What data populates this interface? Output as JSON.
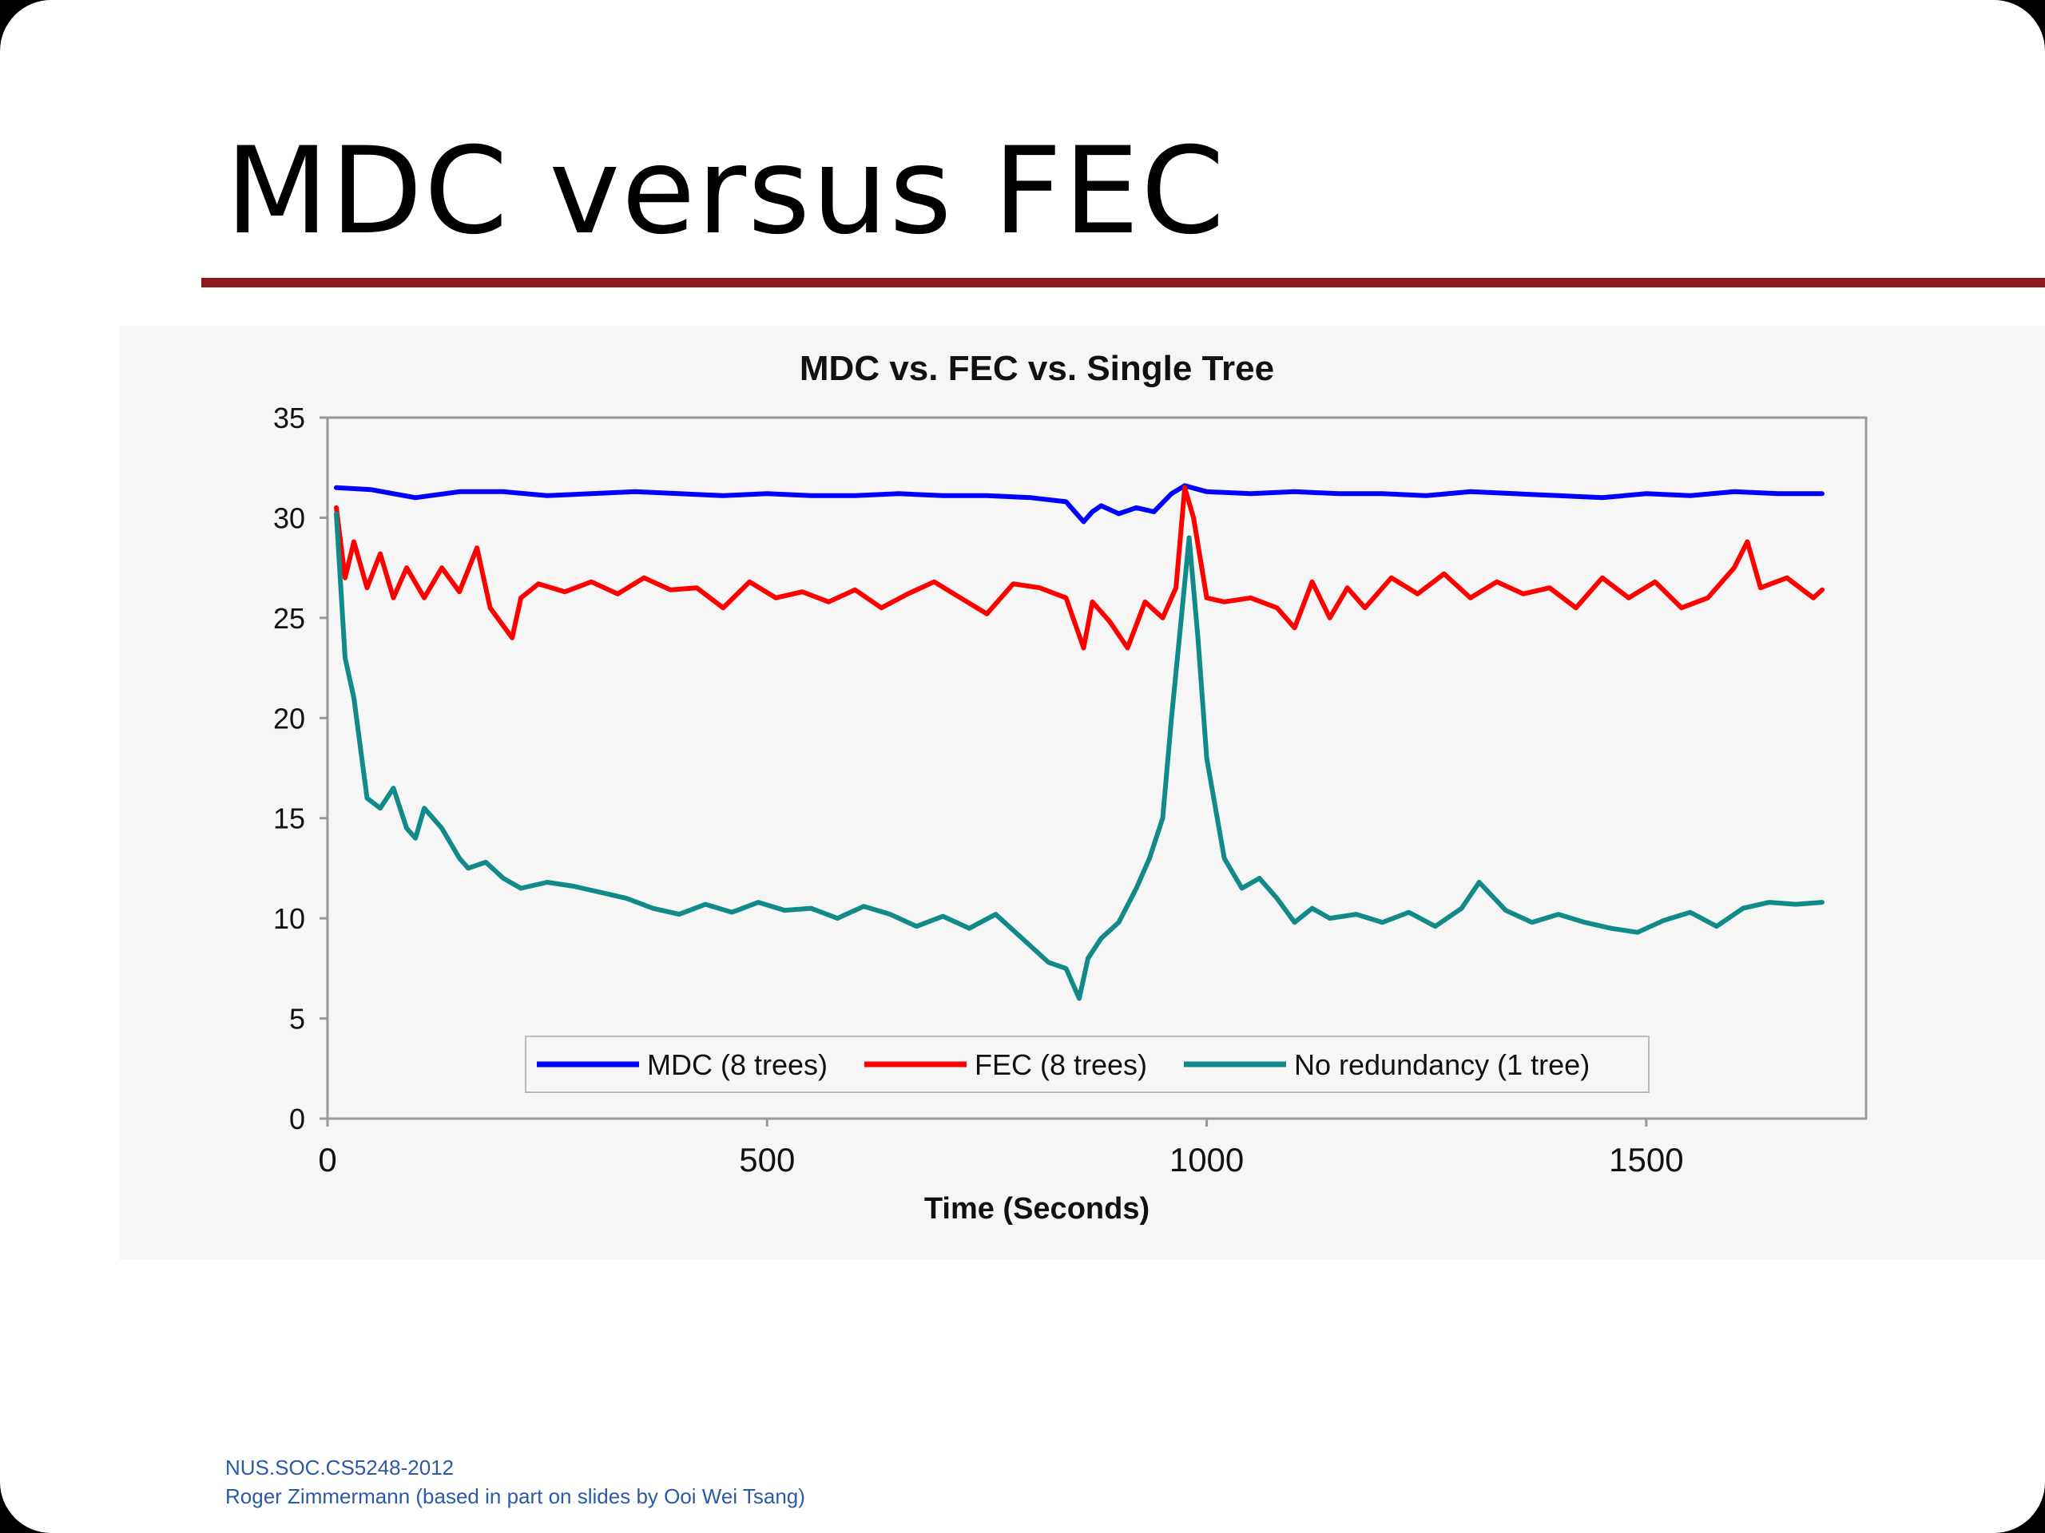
{
  "slide": {
    "title": "MDC versus FEC",
    "accent_color": "#8b1a1a",
    "footer_line1": "NUS.SOC.CS5248-2012",
    "footer_line2": "Roger Zimmermann (based in part on slides by Ooi Wei Tsang)"
  },
  "chart_data": {
    "type": "line",
    "title": "MDC vs. FEC vs. Single Tree",
    "xlabel": "Time (Seconds)",
    "ylabel": "",
    "xlim": [
      0,
      1750
    ],
    "ylim": [
      0,
      35
    ],
    "x_ticks": [
      "0",
      "500",
      "1000",
      "1500"
    ],
    "x_tick_values": [
      0,
      500,
      1000,
      1500
    ],
    "y_ticks": [
      "0",
      "5",
      "10",
      "15",
      "20",
      "25",
      "30",
      "35"
    ],
    "y_tick_values": [
      0,
      5,
      10,
      15,
      20,
      25,
      30,
      35
    ],
    "grid": false,
    "legend_position": "bottom-inside",
    "series": [
      {
        "name": "MDC (8 trees)",
        "color": "#0000ff",
        "x": [
          10,
          50,
          100,
          150,
          200,
          250,
          300,
          350,
          400,
          450,
          500,
          550,
          600,
          650,
          700,
          750,
          800,
          840,
          860,
          870,
          880,
          900,
          920,
          940,
          960,
          975,
          1000,
          1050,
          1100,
          1150,
          1200,
          1250,
          1300,
          1350,
          1400,
          1450,
          1500,
          1550,
          1600,
          1650,
          1700
        ],
        "values": [
          31.5,
          31.4,
          31.0,
          31.3,
          31.3,
          31.1,
          31.2,
          31.3,
          31.2,
          31.1,
          31.2,
          31.1,
          31.1,
          31.2,
          31.1,
          31.1,
          31.0,
          30.8,
          29.8,
          30.3,
          30.6,
          30.2,
          30.5,
          30.3,
          31.2,
          31.6,
          31.3,
          31.2,
          31.3,
          31.2,
          31.2,
          31.1,
          31.3,
          31.2,
          31.1,
          31.0,
          31.2,
          31.1,
          31.3,
          31.2,
          31.2
        ]
      },
      {
        "name": "FEC (8 trees)",
        "color": "#ff0000",
        "x": [
          10,
          20,
          30,
          45,
          60,
          75,
          90,
          110,
          130,
          150,
          170,
          185,
          210,
          220,
          240,
          270,
          300,
          330,
          360,
          390,
          420,
          450,
          480,
          510,
          540,
          570,
          600,
          630,
          660,
          690,
          720,
          750,
          780,
          810,
          840,
          860,
          870,
          890,
          910,
          930,
          950,
          965,
          975,
          985,
          1000,
          1020,
          1050,
          1080,
          1100,
          1120,
          1140,
          1160,
          1180,
          1210,
          1240,
          1270,
          1300,
          1330,
          1360,
          1390,
          1420,
          1450,
          1480,
          1510,
          1540,
          1570,
          1600,
          1615,
          1630,
          1660,
          1690,
          1700
        ],
        "values": [
          30.5,
          27.0,
          28.8,
          26.5,
          28.2,
          26.0,
          27.5,
          26.0,
          27.5,
          26.3,
          28.5,
          25.5,
          24.0,
          26.0,
          26.7,
          26.3,
          26.8,
          26.2,
          27.0,
          26.4,
          26.5,
          25.5,
          26.8,
          26.0,
          26.3,
          25.8,
          26.4,
          25.5,
          26.2,
          26.8,
          26.0,
          25.2,
          26.7,
          26.5,
          26.0,
          23.5,
          25.8,
          24.8,
          23.5,
          25.8,
          25.0,
          26.5,
          31.5,
          30.0,
          26.0,
          25.8,
          26.0,
          25.5,
          24.5,
          26.8,
          25.0,
          26.5,
          25.5,
          27.0,
          26.2,
          27.2,
          26.0,
          26.8,
          26.2,
          26.5,
          25.5,
          27.0,
          26.0,
          26.8,
          25.5,
          26.0,
          27.5,
          28.8,
          26.5,
          27.0,
          26.0,
          26.4
        ]
      },
      {
        "name": "No redundancy (1 tree)",
        "color": "#128a8a",
        "x": [
          10,
          20,
          30,
          45,
          60,
          75,
          90,
          100,
          110,
          130,
          150,
          160,
          180,
          200,
          220,
          250,
          280,
          310,
          340,
          370,
          400,
          430,
          460,
          490,
          520,
          550,
          580,
          610,
          640,
          670,
          700,
          730,
          760,
          790,
          820,
          840,
          855,
          865,
          880,
          900,
          920,
          935,
          950,
          960,
          970,
          980,
          990,
          1000,
          1020,
          1040,
          1060,
          1080,
          1100,
          1120,
          1140,
          1170,
          1200,
          1230,
          1260,
          1290,
          1310,
          1340,
          1370,
          1400,
          1430,
          1460,
          1490,
          1520,
          1550,
          1580,
          1610,
          1640,
          1670,
          1700
        ],
        "values": [
          30.2,
          23.0,
          21.0,
          16.0,
          15.5,
          16.5,
          14.5,
          14.0,
          15.5,
          14.5,
          13.0,
          12.5,
          12.8,
          12.0,
          11.5,
          11.8,
          11.6,
          11.3,
          11.0,
          10.5,
          10.2,
          10.7,
          10.3,
          10.8,
          10.4,
          10.5,
          10.0,
          10.6,
          10.2,
          9.6,
          10.1,
          9.5,
          10.2,
          9.0,
          7.8,
          7.5,
          6.0,
          8.0,
          9.0,
          9.8,
          11.5,
          13.0,
          15.0,
          20.0,
          24.5,
          29.0,
          24.0,
          18.0,
          13.0,
          11.5,
          12.0,
          11.0,
          9.8,
          10.5,
          10.0,
          10.2,
          9.8,
          10.3,
          9.6,
          10.5,
          11.8,
          10.4,
          9.8,
          10.2,
          9.8,
          9.5,
          9.3,
          9.9,
          10.3,
          9.6,
          10.5,
          10.8,
          10.7,
          10.8
        ]
      }
    ]
  }
}
